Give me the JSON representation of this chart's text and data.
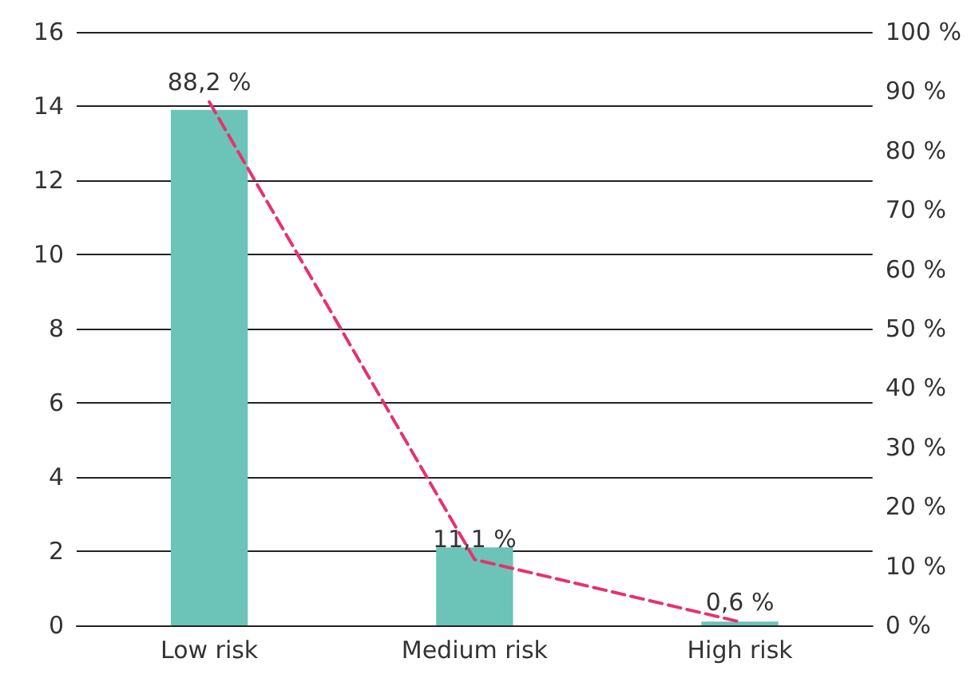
{
  "chart_data": {
    "type": "bar",
    "categories": [
      "Low risk",
      "Medium risk",
      "High risk"
    ],
    "series": [
      {
        "color": "#6cc3b8",
        "values": [
          13.9,
          2.1,
          0.1
        ]
      },
      {
        "type": "line",
        "axis": "y2",
        "color": "#e5336b",
        "line_style": "dashed",
        "marker": "none",
        "values": [
          88.2,
          11.1,
          0.6
        ],
        "value_labels": [
          "88,2 %",
          "11,1 %",
          "0,6 %"
        ]
      }
    ],
    "ylim": [
      0,
      16
    ],
    "yticks": [
      0,
      2,
      4,
      6,
      8,
      10,
      12,
      14,
      16
    ],
    "y2lim": [
      0,
      100
    ],
    "y2ticks": [
      {
        "value": 0,
        "label": "0 %"
      },
      {
        "value": 10,
        "label": "10 %"
      },
      {
        "value": 20,
        "label": "20 %"
      },
      {
        "value": 30,
        "label": "30 %"
      },
      {
        "value": 40,
        "label": "40 %"
      },
      {
        "value": 50,
        "label": "50 %"
      },
      {
        "value": 60,
        "label": "60 %"
      },
      {
        "value": 70,
        "label": "70 %"
      },
      {
        "value": 80,
        "label": "80 %"
      },
      {
        "value": 90,
        "label": "90 %"
      },
      {
        "value": 100,
        "label": "100 %"
      }
    ],
    "grid": "y"
  }
}
